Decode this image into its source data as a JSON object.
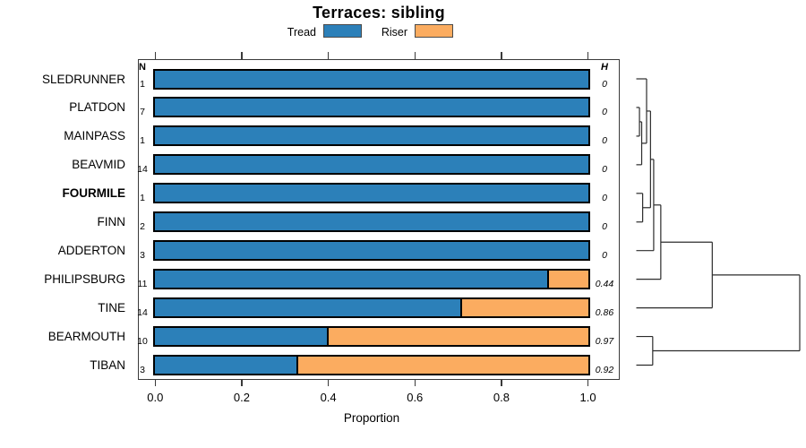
{
  "title": "Terraces: sibling",
  "legend": {
    "items": [
      {
        "label": "Tread",
        "color": "#2C80B9"
      },
      {
        "label": "Riser",
        "color": "#FBAC60"
      }
    ]
  },
  "columns": {
    "n_header": "N",
    "h_header": "H"
  },
  "x_axis": {
    "label": "Proportion",
    "ticks": [
      "0.0",
      "0.2",
      "0.4",
      "0.6",
      "0.8",
      "1.0"
    ],
    "range": [
      0,
      1
    ]
  },
  "chart_data": {
    "type": "bar",
    "orientation": "horizontal",
    "stacked": true,
    "series_labels": [
      "Tread",
      "Riser"
    ],
    "title": "Terraces: sibling",
    "xlabel": "Proportion",
    "xlim": [
      0,
      1
    ],
    "grid": false,
    "rows": [
      {
        "label": "SLEDRUNNER",
        "n": "1",
        "tread": 1.0,
        "riser": 0.0,
        "h": "0",
        "bold": false
      },
      {
        "label": "PLATDON",
        "n": "7",
        "tread": 1.0,
        "riser": 0.0,
        "h": "0",
        "bold": false
      },
      {
        "label": "MAINPASS",
        "n": "1",
        "tread": 1.0,
        "riser": 0.0,
        "h": "0",
        "bold": false
      },
      {
        "label": "BEAVMID",
        "n": "14",
        "tread": 1.0,
        "riser": 0.0,
        "h": "0",
        "bold": false
      },
      {
        "label": "FOURMILE",
        "n": "1",
        "tread": 1.0,
        "riser": 0.0,
        "h": "0",
        "bold": true
      },
      {
        "label": "FINN",
        "n": "2",
        "tread": 1.0,
        "riser": 0.0,
        "h": "0",
        "bold": false
      },
      {
        "label": "ADDERTON",
        "n": "3",
        "tread": 1.0,
        "riser": 0.0,
        "h": "0",
        "bold": false
      },
      {
        "label": "PHILIPSBURG",
        "n": "11",
        "tread": 0.91,
        "riser": 0.09,
        "h": "0.44",
        "bold": false
      },
      {
        "label": "TINE",
        "n": "14",
        "tread": 0.71,
        "riser": 0.29,
        "h": "0.86",
        "bold": false
      },
      {
        "label": "BEARMOUTH",
        "n": "10",
        "tread": 0.4,
        "riser": 0.6,
        "h": "0.97",
        "bold": false
      },
      {
        "label": "TIBAN",
        "n": "3",
        "tread": 0.33,
        "riser": 0.67,
        "h": "0.92",
        "bold": false
      }
    ],
    "dendrogram": {
      "h": 0.667,
      "children": [
        {
          "h": 0.31,
          "children": [
            {
              "h": 0.1,
              "children": [
                {
                  "h": 0.071,
                  "children": [
                    {
                      "h": 0.058,
                      "children": [
                        {
                          "h": 0.042,
                          "children": [
                            {
                              "leaf": "SLEDRUNNER"
                            },
                            {
                              "h": 0.022,
                              "children": [
                                {
                                  "h": 0.013,
                                  "children": [
                                    {
                                      "leaf": "PLATDON"
                                    },
                                    {
                                      "leaf": "MAINPASS"
                                    }
                                  ]
                                },
                                {
                                  "leaf": "BEAVMID"
                                }
                              ]
                            }
                          ]
                        },
                        {
                          "h": 0.026,
                          "children": [
                            {
                              "leaf": "FOURMILE"
                            },
                            {
                              "leaf": "FINN"
                            }
                          ]
                        }
                      ]
                    },
                    {
                      "leaf": "ADDERTON"
                    }
                  ]
                },
                {
                  "leaf": "PHILIPSBURG"
                }
              ]
            },
            {
              "leaf": "TINE"
            }
          ]
        },
        {
          "h": 0.067,
          "children": [
            {
              "leaf": "BEARMOUTH"
            },
            {
              "leaf": "TIBAN"
            }
          ]
        }
      ]
    }
  }
}
